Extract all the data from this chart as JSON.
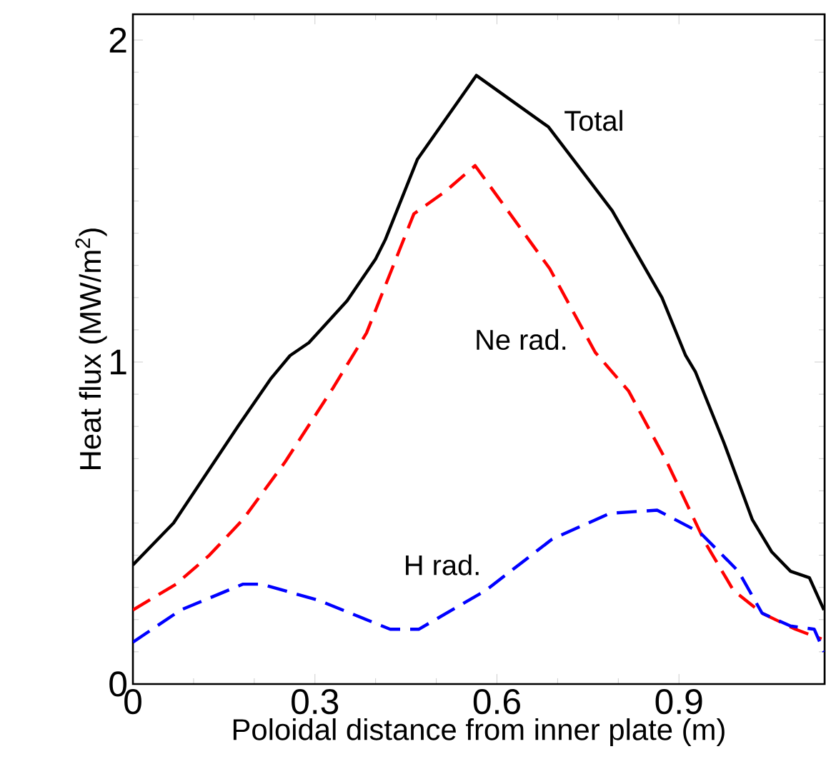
{
  "chart_data": {
    "type": "line",
    "xlabel": "Poloidal distance from inner plate (m)",
    "ylabel": "Heat flux (MW/m$^{2}$)",
    "xlim": [
      0,
      1.14
    ],
    "ylim": [
      0,
      2.08
    ],
    "xticks": [
      0,
      0.3,
      0.6,
      0.9
    ],
    "yticks": [
      0,
      1,
      2
    ],
    "grid": false,
    "legend": false,
    "marker": "none",
    "series": [
      {
        "name": "Total",
        "color": "#000000",
        "line_style": "solid",
        "x": [
          0,
          0.067,
          0.173,
          0.228,
          0.259,
          0.29,
          0.353,
          0.4,
          0.416,
          0.469,
          0.566,
          0.685,
          0.79,
          0.872,
          0.911,
          0.927,
          0.974,
          1.021,
          1.053,
          1.084,
          1.115,
          1.139
        ],
        "values": [
          0.37,
          0.5,
          0.8,
          0.95,
          1.02,
          1.06,
          1.19,
          1.32,
          1.38,
          1.63,
          1.89,
          1.73,
          1.47,
          1.2,
          1.02,
          0.97,
          0.75,
          0.51,
          0.41,
          0.35,
          0.33,
          0.23
        ]
      },
      {
        "name": "Ne rad.",
        "color": "#ff0000",
        "line_style": "dashed",
        "x": [
          0,
          0.071,
          0.126,
          0.181,
          0.251,
          0.33,
          0.385,
          0.463,
          0.515,
          0.564,
          0.687,
          0.762,
          0.817,
          0.88,
          0.943,
          0.99,
          1.037,
          1.092,
          1.135
        ],
        "values": [
          0.23,
          0.31,
          0.4,
          0.51,
          0.69,
          0.92,
          1.09,
          1.46,
          1.53,
          1.61,
          1.29,
          1.03,
          0.91,
          0.69,
          0.44,
          0.29,
          0.22,
          0.17,
          0.14
        ]
      },
      {
        "name": "H rad.",
        "color": "#0000ff",
        "line_style": "dashed",
        "x": [
          0,
          0.079,
          0.181,
          0.212,
          0.306,
          0.424,
          0.471,
          0.581,
          0.691,
          0.786,
          0.864,
          0.935,
          0.998,
          1.037,
          1.084,
          1.123,
          1.139
        ],
        "values": [
          0.13,
          0.23,
          0.31,
          0.31,
          0.26,
          0.17,
          0.17,
          0.29,
          0.45,
          0.53,
          0.54,
          0.47,
          0.35,
          0.22,
          0.18,
          0.17,
          0.1
        ]
      }
    ]
  }
}
